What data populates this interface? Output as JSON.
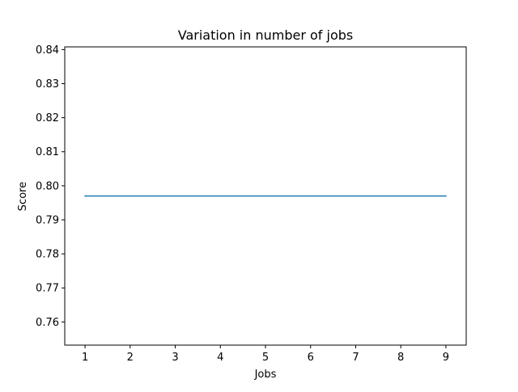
{
  "chart_data": {
    "type": "line",
    "title": "Variation in number of jobs",
    "xlabel": "Jobs",
    "ylabel": "Score",
    "x": [
      1,
      2,
      3,
      4,
      5,
      6,
      7,
      8,
      9
    ],
    "series": [
      {
        "values": [
          0.797,
          0.797,
          0.797,
          0.797,
          0.797,
          0.797,
          0.797,
          0.797,
          0.797
        ],
        "color": "#1f77b4"
      }
    ],
    "xlim": [
      0.55,
      9.45
    ],
    "ylim": [
      0.7532,
      0.8408
    ],
    "x_ticks": [
      1,
      2,
      3,
      4,
      5,
      6,
      7,
      8,
      9
    ],
    "y_ticks": [
      0.76,
      0.77,
      0.78,
      0.79,
      0.8,
      0.81,
      0.82,
      0.83,
      0.84
    ],
    "y_tick_labels": [
      "0.76",
      "0.77",
      "0.78",
      "0.79",
      "0.80",
      "0.81",
      "0.82",
      "0.83",
      "0.84"
    ],
    "grid": false,
    "legend": "none"
  }
}
